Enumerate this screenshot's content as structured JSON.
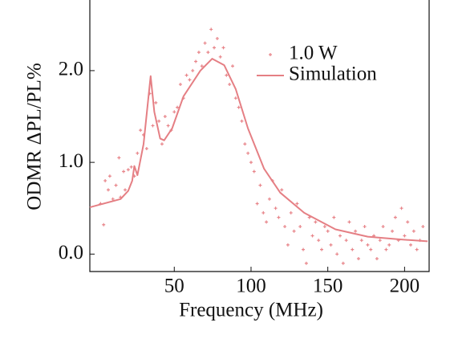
{
  "chart_data": {
    "type": "scatter",
    "xlabel": "Frequency (MHz)",
    "ylabel": "ODMR ΔPL/PL%",
    "xlim": [
      -5,
      216
    ],
    "ylim": [
      -0.19,
      2.77
    ],
    "xticks": [
      50,
      100,
      150,
      200
    ],
    "yticks": [
      {
        "value": 0,
        "label": "0.0"
      },
      {
        "value": 1,
        "label": "1.0"
      },
      {
        "value": 2,
        "label": "2.0"
      }
    ],
    "legend": "upper right",
    "series": [
      {
        "name": "1.0 W",
        "type": "scatter",
        "color": "#e8858a",
        "x": [
          2,
          4,
          5,
          7,
          8,
          10,
          12,
          14,
          15,
          17,
          18,
          20,
          22,
          24,
          26,
          28,
          30,
          32,
          34,
          36,
          38,
          40,
          42,
          44,
          46,
          48,
          50,
          52,
          54,
          56,
          58,
          60,
          62,
          64,
          66,
          68,
          70,
          72,
          74,
          76,
          78,
          80,
          82,
          84,
          86,
          88,
          90,
          92,
          94,
          96,
          98,
          100,
          102,
          104,
          106,
          108,
          110,
          112,
          114,
          116,
          118,
          120,
          122,
          124,
          126,
          128,
          130,
          132,
          134,
          136,
          138,
          140,
          142,
          144,
          146,
          148,
          150,
          152,
          154,
          156,
          158,
          160,
          162,
          164,
          166,
          168,
          170,
          172,
          174,
          176,
          178,
          180,
          182,
          184,
          186,
          188,
          190,
          192,
          194,
          196,
          198,
          200,
          202,
          204,
          206,
          208,
          210,
          212
        ],
        "values": [
          0.55,
          0.32,
          0.8,
          0.7,
          0.85,
          0.6,
          0.75,
          1.05,
          0.62,
          0.9,
          0.7,
          0.92,
          0.95,
          0.85,
          1.1,
          1.35,
          1.3,
          1.15,
          1.75,
          1.4,
          1.65,
          1.45,
          1.2,
          1.5,
          1.4,
          1.35,
          1.55,
          1.6,
          1.85,
          1.7,
          1.95,
          1.9,
          2.0,
          2.1,
          2.2,
          2.05,
          2.3,
          2.2,
          2.45,
          2.25,
          2.35,
          2.15,
          2.25,
          1.95,
          1.85,
          2.05,
          1.7,
          1.6,
          1.45,
          1.2,
          1.1,
          1.0,
          0.9,
          0.55,
          0.75,
          0.45,
          0.35,
          0.6,
          0.8,
          0.5,
          0.4,
          0.7,
          0.3,
          0.1,
          0.45,
          0.25,
          0.55,
          0.3,
          0.05,
          -0.1,
          0.4,
          0.2,
          0.35,
          0.15,
          0.05,
          0.3,
          0.25,
          0.1,
          0.4,
          0.0,
          0.2,
          -0.1,
          0.15,
          0.35,
          0.05,
          0.25,
          -0.05,
          0.15,
          0.3,
          0.1,
          0.05,
          0.2,
          -0.05,
          0.15,
          0.3,
          0.05,
          0.1,
          0.25,
          0.4,
          0.15,
          0.5,
          0.2,
          0.35,
          0.1,
          0.25,
          0.05,
          0.15,
          0.3
        ]
      },
      {
        "name": "Simulation",
        "type": "line",
        "color": "#e57f84",
        "x": [
          -5,
          15,
          20,
          22.6,
          24,
          26,
          30,
          34.6,
          37,
          40.8,
          43.4,
          48.6,
          56,
          67,
          74.7,
          82.5,
          90,
          98,
          108.5,
          119,
          134.6,
          155,
          176,
          197,
          215
        ],
        "values": [
          0.51,
          0.6,
          0.69,
          0.8,
          0.96,
          0.86,
          1.2,
          1.94,
          1.55,
          1.26,
          1.24,
          1.37,
          1.72,
          2.0,
          2.13,
          2.06,
          1.8,
          1.37,
          0.93,
          0.67,
          0.45,
          0.27,
          0.19,
          0.16,
          0.14
        ]
      }
    ]
  }
}
